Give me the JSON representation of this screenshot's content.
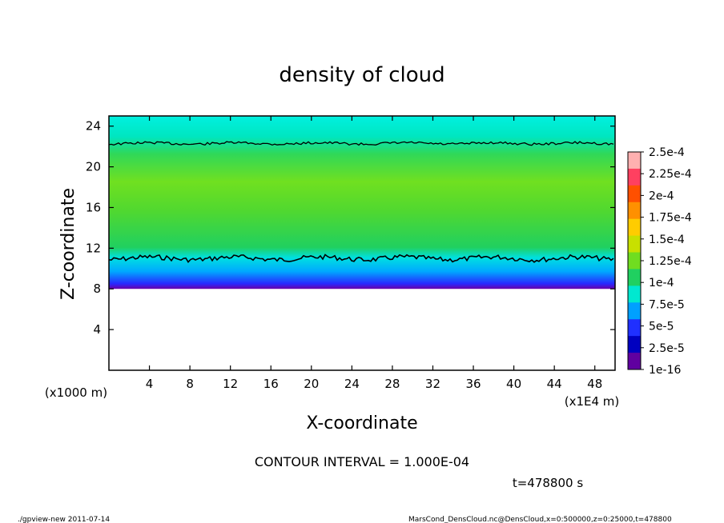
{
  "chart_data": {
    "type": "heatmap",
    "title": "density of cloud",
    "xlabel": "X-coordinate",
    "ylabel": "Z-coordinate",
    "xlim": [
      0,
      50
    ],
    "ylim": [
      0,
      25
    ],
    "x_ticks": [
      4,
      8,
      12,
      16,
      20,
      24,
      28,
      32,
      36,
      40,
      44,
      48
    ],
    "y_ticks": [
      4,
      8,
      12,
      16,
      20,
      24
    ],
    "x_unit_label": "(x1E4 m)",
    "y_unit_label": "(x1000 m)",
    "colorbar": {
      "labels": [
        "2.5e-4",
        "2.25e-4",
        "2e-4",
        "1.75e-4",
        "1.5e-4",
        "1.25e-4",
        "1e-4",
        "7.5e-5",
        "5e-5",
        "2.5e-5",
        "1e-16"
      ],
      "colors": [
        "#ffb0b0",
        "#ff4060",
        "#ff5000",
        "#ff9000",
        "#ffcc00",
        "#c8e000",
        "#70dd20",
        "#20d060",
        "#00e8d0",
        "#00a0ff",
        "#2030ff",
        "#0000c0",
        "#6000a0"
      ]
    },
    "cloud_layer": {
      "z_bottom": 8,
      "z_lower_contour": 11,
      "z_upper_contour": 22.3,
      "z_top": 25
    },
    "contour_interval": "CONTOUR INTERVAL = 1.000E-04",
    "time_label": "t=478800 s"
  },
  "footer": {
    "left": "./gpview-new   2011-07-14",
    "right": "MarsCond_DensCloud.nc@DensCloud,x=0:500000,z=0:25000,t=478800"
  }
}
